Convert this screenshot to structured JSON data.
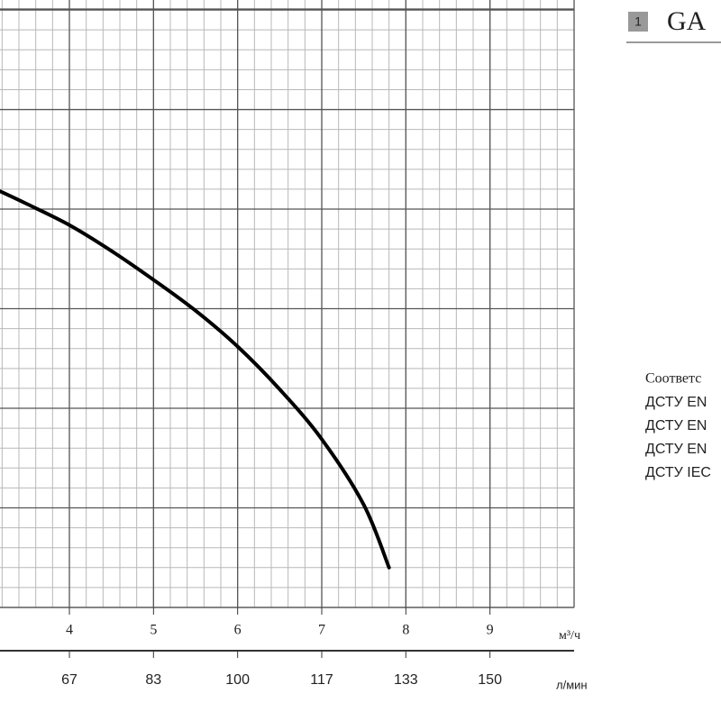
{
  "chart_data": {
    "type": "line",
    "x": [
      3.175,
      3.5,
      4,
      4.5,
      5,
      5.5,
      6,
      6.5,
      7,
      7.5,
      7.8
    ],
    "series": [
      {
        "color": "#000000",
        "values": [
          4.18,
          4.05,
          3.84,
          3.58,
          3.29,
          2.98,
          2.62,
          2.19,
          1.69,
          1.03,
          0.4
        ]
      }
    ],
    "xlim": [
      3.175,
      10
    ],
    "ylim": [
      0,
      6.1
    ],
    "xticks": [
      4,
      5,
      6,
      7,
      8,
      9
    ],
    "x_unit": "м³/ч",
    "x2lim": [
      52.92,
      166.67
    ],
    "x2ticks": [
      {
        "value": 66.67,
        "label": "67"
      },
      {
        "value": 83.33,
        "label": "83"
      },
      {
        "value": 100,
        "label": "100"
      },
      {
        "value": 116.67,
        "label": "117"
      },
      {
        "value": 133.33,
        "label": "133"
      },
      {
        "value": 150,
        "label": "150"
      }
    ],
    "x2_unit": "л/мин",
    "grid": true
  },
  "sidebar": {
    "badge": "1",
    "title": "GA",
    "standards": [
      "Соответс",
      "ДСТУ EN",
      "ДСТУ EN",
      "ДСТУ EN",
      "ДСТУ IEC"
    ]
  }
}
